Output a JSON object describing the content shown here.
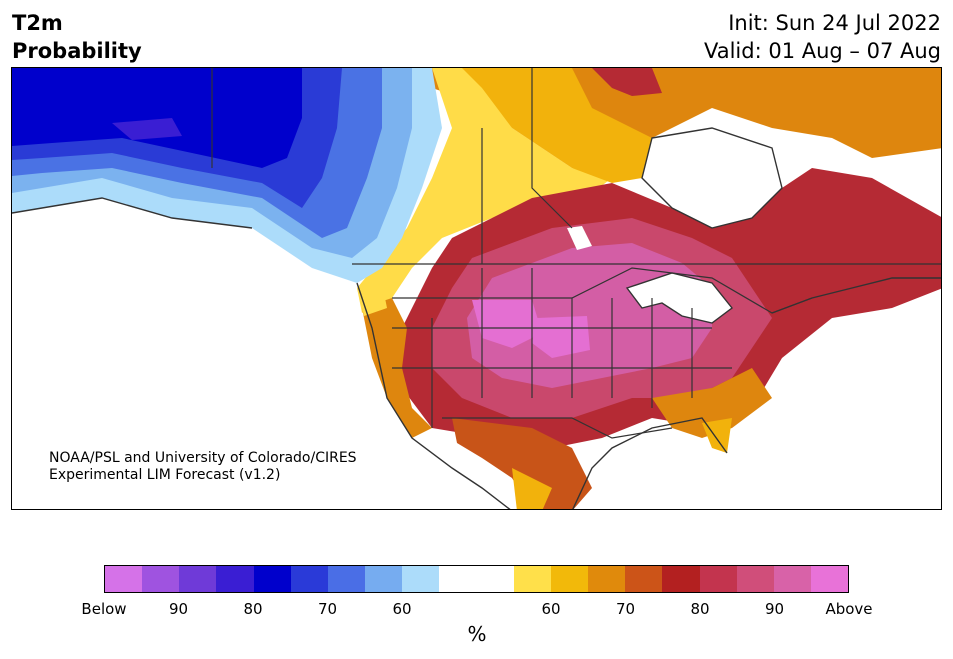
{
  "header": {
    "title_line1": "T2m",
    "title_line2": "Probability",
    "init_text": "Init: Sun 24 Jul 2022",
    "valid_text": "Valid: 01 Aug – 07 Aug"
  },
  "credit": {
    "line1": "NOAA/PSL and University of Colorado/CIRES",
    "line2": "Experimental LIM Forecast (v1.2)"
  },
  "colorbar": {
    "colors": [
      "#d572e8",
      "#9f53e0",
      "#6f3ad8",
      "#3a1ed3",
      "#0000cc",
      "#2a3ad8",
      "#4a6ee6",
      "#76acf0",
      "#acdcfa",
      "#ffffff",
      "#ffffff",
      "#ffe04a",
      "#f2b90a",
      "#e08a0c",
      "#cc5418",
      "#b32020",
      "#c3344e",
      "#d04e7a",
      "#d862a8",
      "#e872d8"
    ],
    "tick_labels": [
      "Below",
      "90",
      "80",
      "70",
      "60",
      "60",
      "70",
      "80",
      "90",
      "Above"
    ],
    "unit": "%"
  },
  "map": {
    "region": "North America",
    "colors": {
      "above_95": "#e46fd2",
      "above_90": "#d35ea5",
      "above_85": "#c9486c",
      "above_80": "#b52a34",
      "above_75": "#c85418",
      "above_70": "#de860e",
      "above_65": "#f2b20c",
      "above_60": "#ffdc48",
      "below_60": "#acdcfa",
      "below_65": "#7bb2ef",
      "below_70": "#4a72e4",
      "below_75": "#2a3bd6",
      "below_80": "#0000cc",
      "below_85": "#3a1ed3",
      "land_lines": "#333333",
      "water": "#ffffff"
    }
  }
}
